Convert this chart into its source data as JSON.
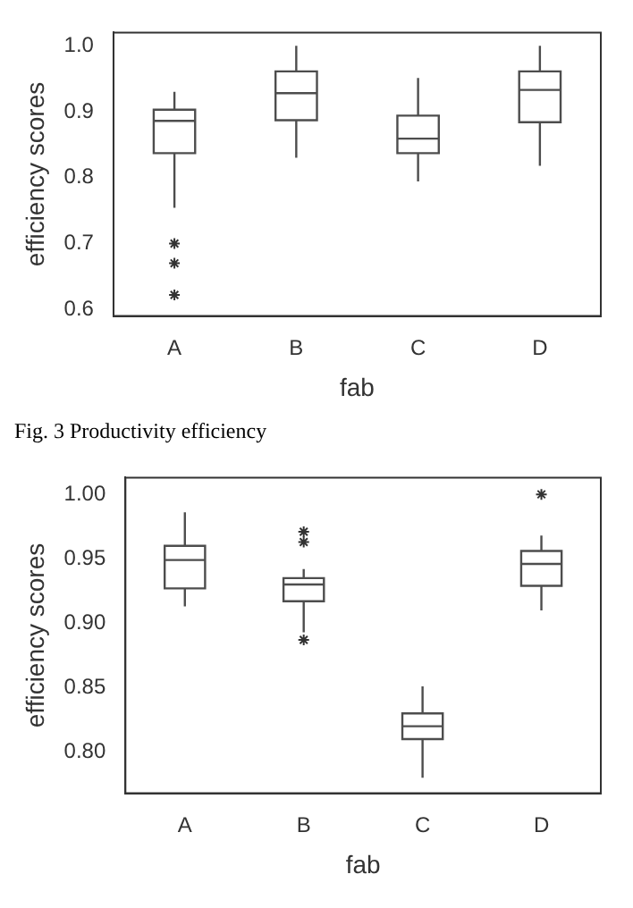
{
  "chart_data": [
    {
      "type": "box",
      "categories": [
        "A",
        "B",
        "C",
        "D"
      ],
      "xlabel": "fab",
      "ylabel": "efficiency scores",
      "color": "#4d4d4d",
      "marker": "star",
      "ylim": [
        0.59,
        1.02
      ],
      "yticks": [
        {
          "value": 0.6,
          "label": "0.6"
        },
        0.7,
        0.8,
        0.9,
        {
          "value": 1,
          "label": "1.0"
        }
      ],
      "annotations": [
        "Fig. 3 Productivity efficiency"
      ],
      "boxes": [
        {
          "low": 0.754,
          "q1": 0.837,
          "median": 0.886,
          "q3": 0.903,
          "high": 0.93,
          "outliers": [
            0.7,
            0.67,
            0.622
          ]
        },
        {
          "low": 0.83,
          "q1": 0.887,
          "median": 0.928,
          "q3": 0.961,
          "high": 1.0
        },
        {
          "low": 0.794,
          "q1": 0.837,
          "median": 0.859,
          "q3": 0.894,
          "high": 0.951
        },
        {
          "low": 0.818,
          "q1": 0.884,
          "median": 0.933,
          "q3": 0.961,
          "high": 1.0
        }
      ]
    },
    {
      "type": "box",
      "categories": [
        "A",
        "B",
        "C",
        "D"
      ],
      "xlabel": "fab",
      "ylabel": "efficiency scores",
      "color": "#4d4d4d",
      "marker": "star",
      "ylim": [
        0.768,
        1.013
      ],
      "yticks": [
        {
          "value": 0.8,
          "label": "0.80"
        },
        0.85,
        {
          "value": 0.9,
          "label": "0.90"
        },
        0.95,
        {
          "value": 1,
          "label": "1.00"
        }
      ],
      "boxes": [
        {
          "low": 0.913,
          "q1": 0.927,
          "median": 0.949,
          "q3": 0.96,
          "high": 0.986
        },
        {
          "low": 0.893,
          "q1": 0.917,
          "median": 0.93,
          "q3": 0.935,
          "high": 0.942,
          "outliers": [
            0.971,
            0.963,
            0.887
          ]
        },
        {
          "low": 0.78,
          "q1": 0.81,
          "median": 0.82,
          "q3": 0.83,
          "high": 0.851
        },
        {
          "low": 0.91,
          "q1": 0.929,
          "median": 0.946,
          "q3": 0.956,
          "high": 0.968,
          "outliers": [
            1.0
          ]
        }
      ]
    }
  ]
}
